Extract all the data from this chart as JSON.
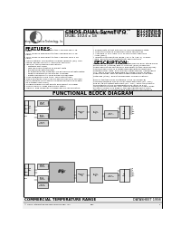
{
  "title_line1": "CMOS DUAL SyncFIFO™",
  "title_line2": "DUAL 256 x 18, DUAL 512 x 18,",
  "title_line3": "DUAL 1024 x 18",
  "part_num1": "IDT72805LB",
  "part_num2": "IDT72V65LB",
  "part_num3": "IDT72825LB",
  "company": "Integrated Device Technology, Inc.",
  "sec_features": "FEATURES:",
  "sec_desc": "DESCRIPTION:",
  "sec_block": "FUNCTIONAL BLOCK DIAGRAM",
  "footer_left": "COMMERCIAL TEMPERATURE RANGE",
  "footer_right": "DATASHEET 1998",
  "bg": "#ffffff",
  "black": "#000000",
  "lgray": "#cccccc",
  "mgray": "#999999",
  "dgray": "#555555",
  "block_fill": "#d8d8d8",
  "block_fill2": "#bbbbbb",
  "header_fill": "#f2f2f2"
}
